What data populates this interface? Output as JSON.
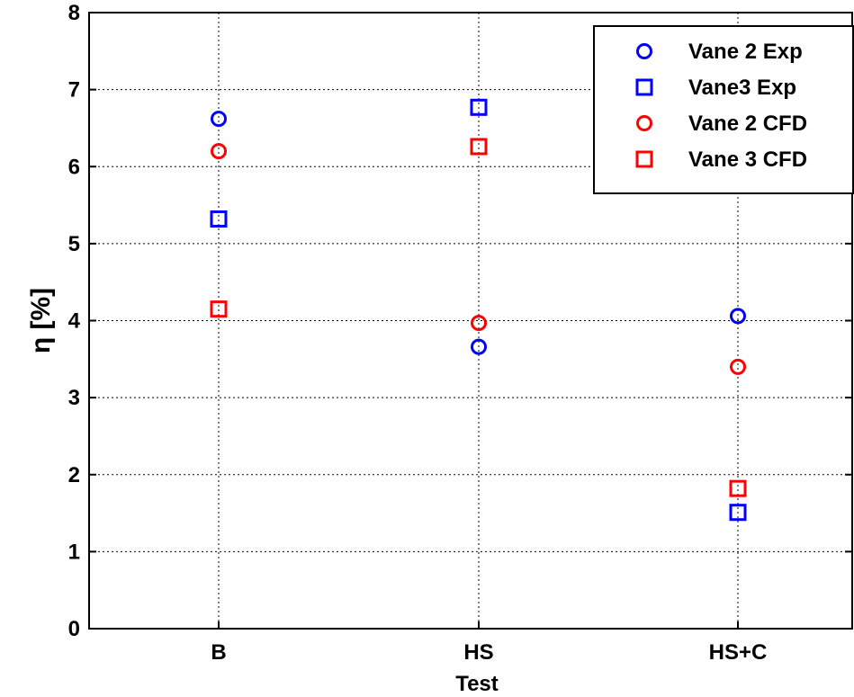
{
  "chart_data": {
    "type": "scatter",
    "categories": [
      "B",
      "HS",
      "HS+C"
    ],
    "xlabel": "Test",
    "ylabel": "η [%]",
    "ylim": [
      0,
      8
    ],
    "yticks": [
      "0",
      "1",
      "2",
      "3",
      "4",
      "5",
      "6",
      "7",
      "8"
    ],
    "grid": true,
    "legend_position": "top-right",
    "series": [
      {
        "name": "Vane 2 Exp",
        "marker": "circle",
        "color": "#0000ff",
        "values": [
          6.62,
          3.66,
          4.06
        ]
      },
      {
        "name": "Vane3 Exp",
        "marker": "square",
        "color": "#0000ff",
        "values": [
          5.32,
          6.77,
          1.51
        ]
      },
      {
        "name": "Vane 2 CFD",
        "marker": "circle",
        "color": "#ff0000",
        "values": [
          6.2,
          3.97,
          3.4
        ]
      },
      {
        "name": "Vane 3 CFD",
        "marker": "square",
        "color": "#ff0000",
        "values": [
          4.15,
          6.26,
          1.82
        ]
      }
    ]
  }
}
